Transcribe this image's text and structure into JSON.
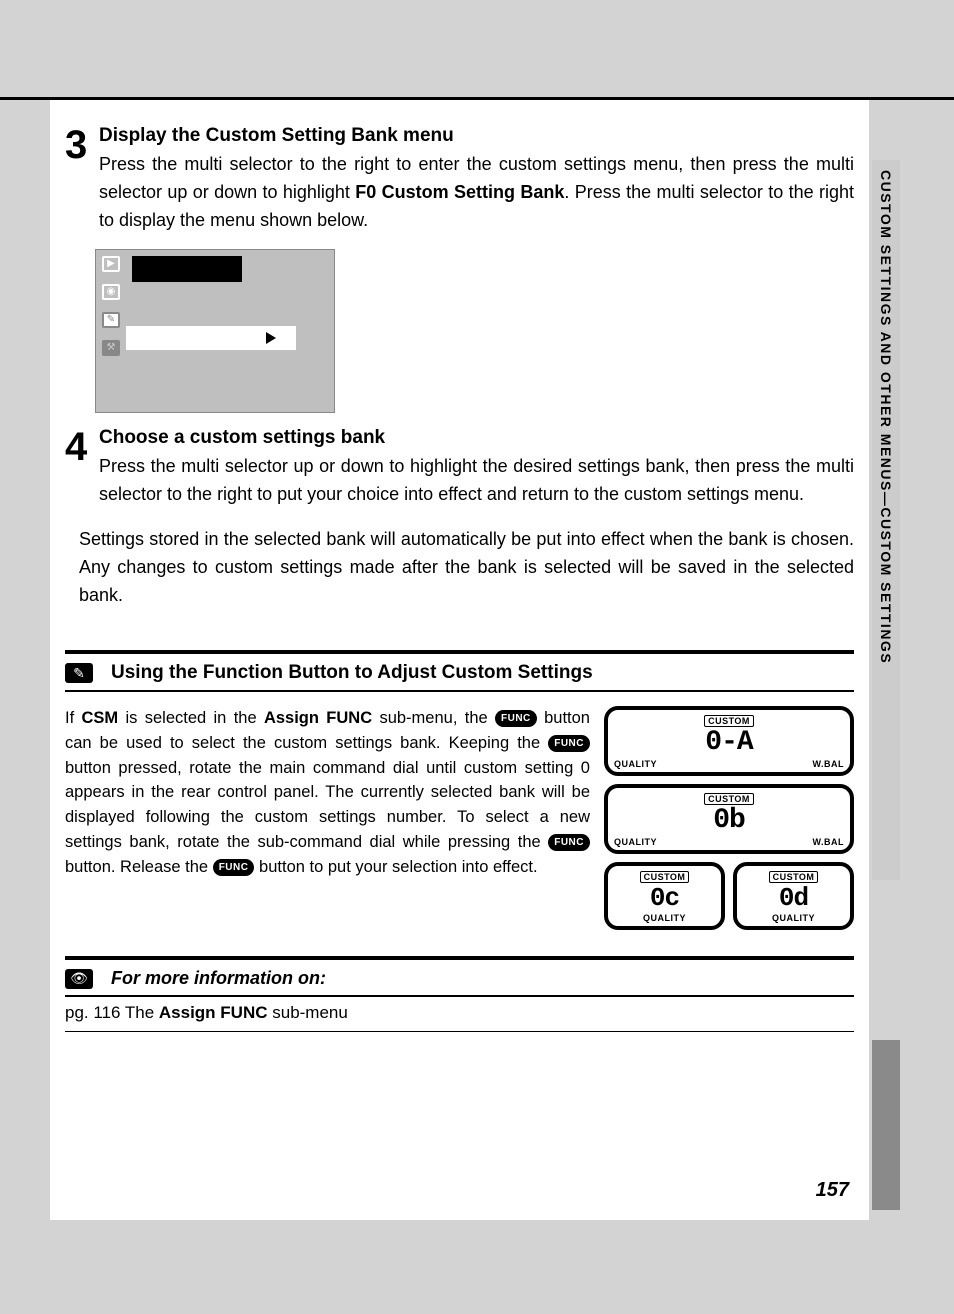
{
  "colors": {
    "page_bg": "#d3d3d3",
    "content_bg": "#ffffff",
    "rule": "#000000",
    "sidetab_light": "#cccccc",
    "sidetab_dark": "#8a8a8a"
  },
  "side_tab": "CUSTOM SETTINGS AND OTHER MENUS—CUSTOM SETTINGS",
  "step3": {
    "num": "3",
    "title": "Display the Custom Setting Bank menu",
    "text_before_bold": "Press the multi selector to the right to enter the custom settings menu, then press the multi selector up or down to highlight ",
    "bold": "F0 Custom Setting Bank",
    "text_after_bold": ". Press the multi selector to the right to display the menu shown below."
  },
  "menu_mock": {
    "side_icons": [
      "▶",
      "◉",
      "✎",
      "⚒"
    ],
    "has_black_bar": true,
    "selected_row_arrow": true
  },
  "step4": {
    "num": "4",
    "title": "Choose a custom settings bank",
    "text": "Press the multi selector up or down to highlight the desired settings bank, then press the multi selector to the right to put your choice into effect and return to the custom settings menu."
  },
  "paragraph": "Settings stored in the selected bank will automatically be put into effect when the bank is chosen.  Any changes to custom settings made after the bank is selected will be saved in the selected bank.",
  "note": {
    "icon": "✎",
    "title": "Using the Function Button to Adjust Custom Settings",
    "func_label": "FUNC",
    "text_parts": {
      "p1a": "If ",
      "p1_csm": "CSM",
      "p1b": " is selected in the ",
      "p1_assign": "Assign FUNC",
      "p1c": " sub-menu, the ",
      "p1d": " button can be used to select the custom settings bank.  Keeping the ",
      "p1e": " button pressed, rotate the main command dial until custom setting 0 appears in the rear control panel.  The currently selected bank will be displayed following the custom settings number.  To select a new settings bank, rotate the sub-command dial while pressing the ",
      "p1f": " button.  Release the ",
      "p1g": " button to put your selection into effect."
    },
    "lcd": {
      "custom_label": "CUSTOM",
      "quality_label": "QUALITY",
      "wbal_label": "W.BAL",
      "panels": [
        {
          "digits": "0-A",
          "bottom_right": "W.BAL"
        },
        {
          "digits": "0b",
          "bottom_right": "W.BAL"
        }
      ],
      "small_panels": [
        {
          "digits": "0c"
        },
        {
          "digits": "0d"
        }
      ]
    }
  },
  "more_info": {
    "icon": "👁",
    "title": "For more information on:",
    "row_prefix": "pg. 116  The ",
    "row_bold": "Assign FUNC",
    "row_suffix": " sub-menu"
  },
  "page_number": "157"
}
